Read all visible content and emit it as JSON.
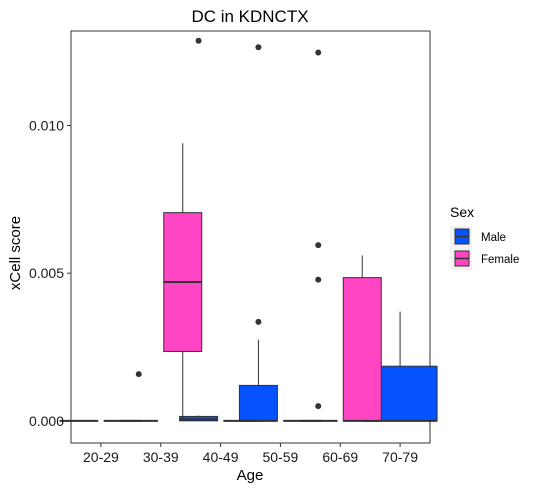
{
  "chart_data": {
    "type": "boxplot",
    "title": "DC in KDNCTX",
    "xlabel": "Age",
    "ylabel": "xCell score",
    "categories": [
      "20-29",
      "30-39",
      "40-49",
      "50-59",
      "60-69",
      "70-79"
    ],
    "ylim": [
      -0.00075,
      0.0132
    ],
    "yticks": [
      0.0,
      0.005,
      0.01
    ],
    "ytick_labels": [
      "0.000",
      "0.005",
      "0.010"
    ],
    "grid": false,
    "legend": {
      "title": "Sex",
      "position": "right",
      "entries": [
        {
          "name": "Male",
          "color": "#0652ff"
        },
        {
          "name": "Female",
          "color": "#ff44c4"
        }
      ]
    },
    "series": [
      {
        "name": "Male",
        "color": "#0652ff",
        "boxes": [
          {
            "category": "20-29",
            "min": 0,
            "q1": 0,
            "median": 0,
            "q3": 0,
            "max": 0,
            "outliers": []
          },
          {
            "category": "30-39",
            "min": 0,
            "q1": 0,
            "median": 0,
            "q3": 0,
            "max": 0,
            "outliers": [
              0.00158
            ]
          },
          {
            "category": "40-49",
            "min": 0,
            "q1": 0,
            "median": 5e-05,
            "q3": 0.00015,
            "max": 0.00018,
            "outliers": [
              0.01287
            ]
          },
          {
            "category": "50-59",
            "min": 0,
            "q1": 0,
            "median": 0,
            "q3": 0.0012,
            "max": 0.00275,
            "outliers": [
              0.00335,
              0.01265
            ]
          },
          {
            "category": "60-69",
            "min": 0,
            "q1": 0,
            "median": 0,
            "q3": 0,
            "max": 0,
            "outliers": [
              0.0005,
              0.00478,
              0.00595,
              0.01247
            ]
          },
          {
            "category": "70-79",
            "min": 0,
            "q1": 0,
            "median": 0,
            "q3": 0.00185,
            "max": 0.0037,
            "outliers": [],
            "full_width": true
          }
        ]
      },
      {
        "name": "Female",
        "color": "#ff44c4",
        "boxes": [
          {
            "category": "20-29",
            "min": 0,
            "q1": 0,
            "median": 0,
            "q3": 0,
            "max": 0,
            "outliers": []
          },
          {
            "category": "30-39",
            "min": 0,
            "q1": 0.00235,
            "median": 0.0047,
            "q3": 0.00705,
            "max": 0.0094,
            "outliers": []
          },
          {
            "category": "40-49",
            "min": 0,
            "q1": 0,
            "median": 0,
            "q3": 0,
            "max": 0,
            "outliers": []
          },
          {
            "category": "50-59",
            "min": 0,
            "q1": 0,
            "median": 0,
            "q3": 0,
            "max": 0,
            "outliers": []
          },
          {
            "category": "60-69",
            "min": 0,
            "q1": 0,
            "median": 0,
            "q3": 0.00485,
            "max": 0.0056,
            "outliers": []
          }
        ]
      }
    ]
  }
}
